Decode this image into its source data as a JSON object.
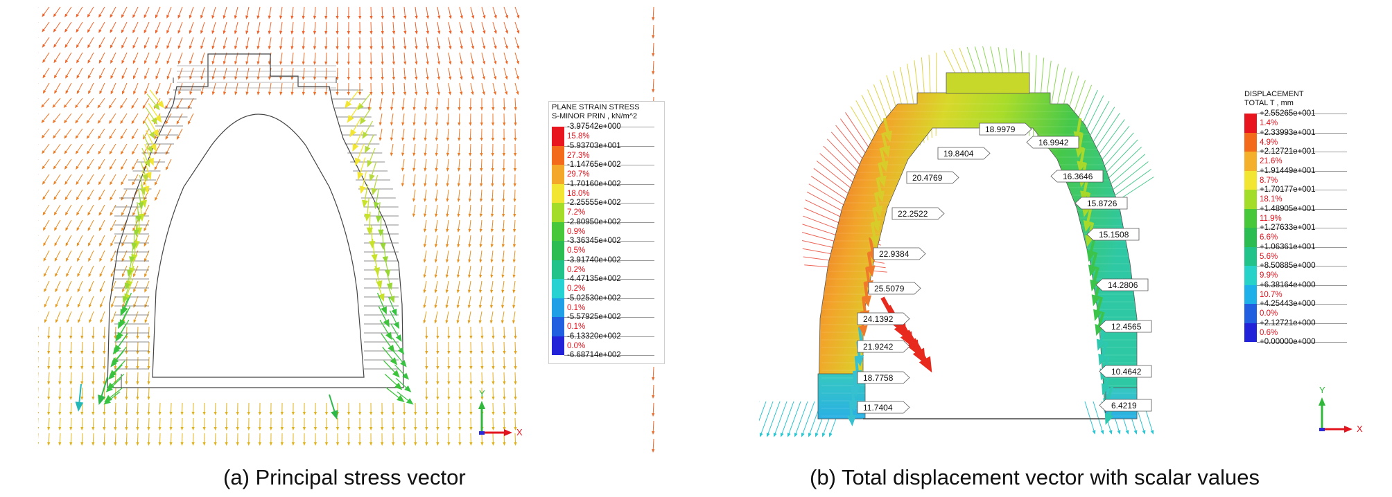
{
  "panel_a": {
    "legend": {
      "title": "PLANE STRAIN STRESS",
      "subtitle": "S-MINOR PRIN , kN/m^2",
      "values": [
        "-3.97542e+000",
        "-5.93703e+001",
        "-1.14765e+002",
        "-1.70160e+002",
        "-2.25555e+002",
        "-2.80950e+002",
        "-3.36345e+002",
        "-3.91740e+002",
        "-4.47135e+002",
        "-5.02530e+002",
        "-5.57925e+002",
        "-6.13320e+002",
        "-6.68714e+002"
      ],
      "percents": [
        "15.8%",
        "27.3%",
        "29.7%",
        "18.0%",
        "7.2%",
        "0.9%",
        "0.5%",
        "0.2%",
        "0.2%",
        "0.1%",
        "0.1%",
        "0.0%"
      ],
      "colors": [
        "#e8141e",
        "#f26a1a",
        "#f4a82a",
        "#f2e632",
        "#a4dc2a",
        "#46c83a",
        "#2cbd52",
        "#22c38a",
        "#27d2d2",
        "#1e9fe6",
        "#1f5fe0",
        "#2222d8"
      ]
    },
    "axis": {
      "x": "X",
      "y": "Y"
    },
    "caption": "(a) Principal stress vector"
  },
  "panel_b": {
    "legend": {
      "title": "DISPLACEMENT",
      "subtitle": "TOTAL T , mm",
      "values": [
        "+2.55265e+001",
        "+2.33993e+001",
        "+2.12721e+001",
        "+1.91449e+001",
        "+1.70177e+001",
        "+1.48905e+001",
        "+1.27633e+001",
        "+1.06361e+001",
        "+8.50885e+000",
        "+6.38164e+000",
        "+4.25443e+000",
        "+2.12721e+000",
        "+0.00000e+000"
      ],
      "percents": [
        "1.4%",
        "4.9%",
        "21.6%",
        "8.7%",
        "18.1%",
        "11.9%",
        "6.6%",
        "5.6%",
        "9.9%",
        "10.7%",
        "0.0%",
        "0.6%"
      ],
      "colors": [
        "#e8141e",
        "#f26a1a",
        "#f4b02a",
        "#f2e632",
        "#a4dc2a",
        "#46c83a",
        "#2cbd52",
        "#22c38a",
        "#27d2c8",
        "#1eb0e8",
        "#1f5fe0",
        "#2222d8"
      ]
    },
    "scalar_labels": [
      "18.9979",
      "19.8404",
      "20.4769",
      "22.2522",
      "22.9384",
      "25.5079",
      "24.1392",
      "21.9242",
      "18.7758",
      "11.7404",
      "16.9942",
      "16.3646",
      "15.8726",
      "15.1508",
      "14.2806",
      "12.4565",
      "10.4642",
      "6.4219"
    ],
    "axis": {
      "x": "X",
      "y": "Y"
    },
    "caption": "(b) Total displacement vector with scalar values"
  }
}
